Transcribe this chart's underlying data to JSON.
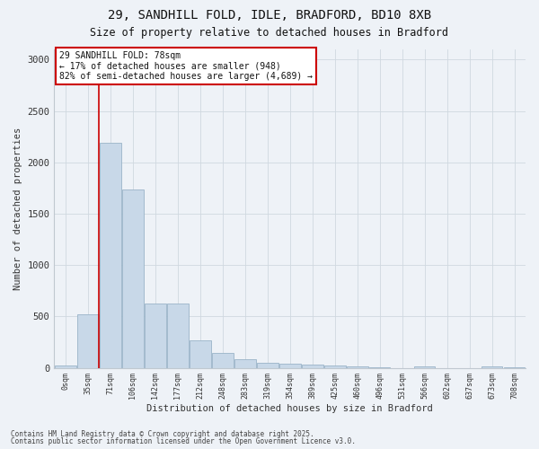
{
  "title_line1": "29, SANDHILL FOLD, IDLE, BRADFORD, BD10 8XB",
  "title_line2": "Size of property relative to detached houses in Bradford",
  "xlabel": "Distribution of detached houses by size in Bradford",
  "ylabel": "Number of detached properties",
  "bar_color": "#c8d8e8",
  "bar_edge_color": "#9ab4c8",
  "background_color": "#eef2f7",
  "annotation_box_color": "#cc0000",
  "vline_color": "#cc0000",
  "vline_position": 1.5,
  "annotation_title": "29 SANDHILL FOLD: 78sqm",
  "annotation_line2": "← 17% of detached houses are smaller (948)",
  "annotation_line3": "82% of semi-detached houses are larger (4,689) →",
  "categories": [
    "0sqm",
    "35sqm",
    "71sqm",
    "106sqm",
    "142sqm",
    "177sqm",
    "212sqm",
    "248sqm",
    "283sqm",
    "319sqm",
    "354sqm",
    "389sqm",
    "425sqm",
    "460sqm",
    "496sqm",
    "531sqm",
    "566sqm",
    "602sqm",
    "637sqm",
    "673sqm",
    "708sqm"
  ],
  "values": [
    20,
    525,
    2195,
    1740,
    630,
    630,
    270,
    145,
    80,
    50,
    40,
    30,
    20,
    10,
    5,
    0,
    10,
    0,
    0,
    15,
    5
  ],
  "ylim": [
    0,
    3100
  ],
  "yticks": [
    0,
    500,
    1000,
    1500,
    2000,
    2500,
    3000
  ],
  "footnote_line1": "Contains HM Land Registry data © Crown copyright and database right 2025.",
  "footnote_line2": "Contains public sector information licensed under the Open Government Licence v3.0."
}
